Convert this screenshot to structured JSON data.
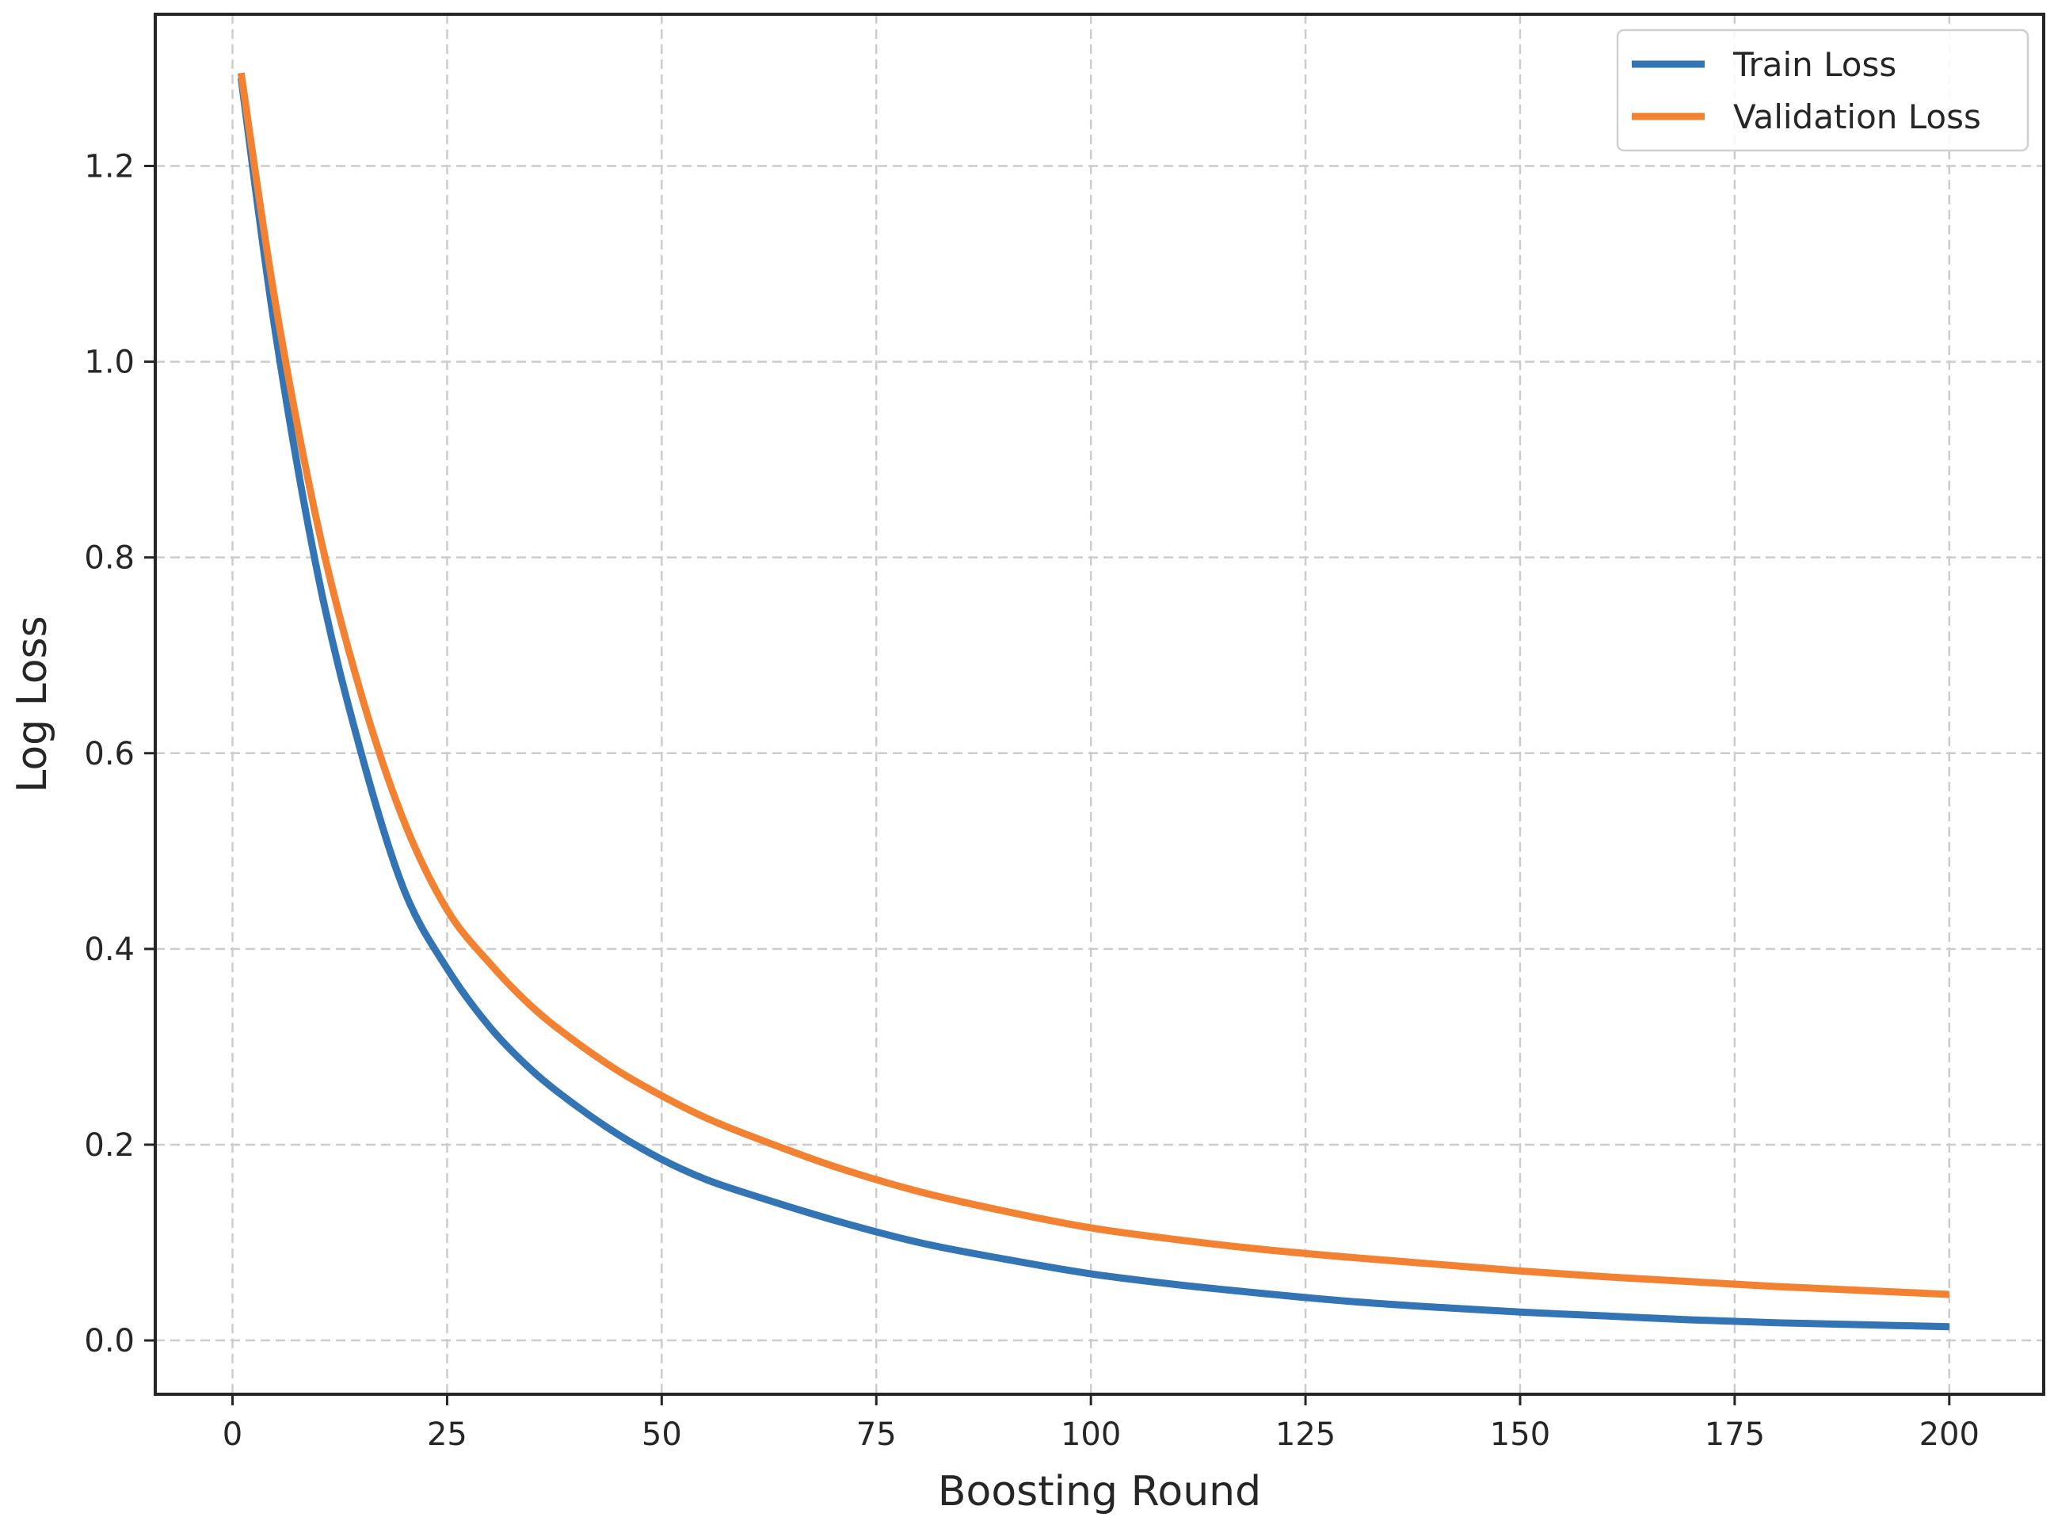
{
  "chart_data": {
    "type": "line",
    "title": "",
    "xlabel": "Boosting Round",
    "ylabel": "Log Loss",
    "xlim": [
      -9,
      211
    ],
    "ylim": [
      -0.055,
      1.355
    ],
    "xticks": [
      0,
      25,
      50,
      75,
      100,
      125,
      150,
      175,
      200
    ],
    "xtick_labels": [
      "0",
      "25",
      "50",
      "75",
      "100",
      "125",
      "150",
      "175",
      "200"
    ],
    "yticks": [
      0.0,
      0.2,
      0.4,
      0.6,
      0.8,
      1.0,
      1.2
    ],
    "ytick_labels": [
      "0.0",
      "0.2",
      "0.4",
      "0.6",
      "0.8",
      "1.0",
      "1.2"
    ],
    "grid": true,
    "legend_position": "top-right",
    "x": [
      1,
      5,
      10,
      15,
      20,
      25,
      30,
      35,
      40,
      45,
      50,
      55,
      60,
      70,
      80,
      90,
      100,
      110,
      120,
      130,
      140,
      150,
      160,
      170,
      180,
      190,
      200
    ],
    "series": [
      {
        "name": "Train Loss",
        "color": "#3274b4",
        "values": [
          1.29,
          1.03,
          0.78,
          0.6,
          0.46,
          0.38,
          0.32,
          0.275,
          0.24,
          0.21,
          0.185,
          0.165,
          0.15,
          0.123,
          0.1,
          0.083,
          0.068,
          0.057,
          0.048,
          0.04,
          0.034,
          0.029,
          0.025,
          0.021,
          0.018,
          0.016,
          0.014
        ]
      },
      {
        "name": "Validation Loss",
        "color": "#f28232",
        "values": [
          1.295,
          1.06,
          0.83,
          0.66,
          0.53,
          0.44,
          0.385,
          0.34,
          0.305,
          0.275,
          0.25,
          0.228,
          0.21,
          0.178,
          0.152,
          0.132,
          0.115,
          0.103,
          0.093,
          0.085,
          0.078,
          0.071,
          0.065,
          0.06,
          0.055,
          0.051,
          0.047
        ]
      }
    ]
  }
}
